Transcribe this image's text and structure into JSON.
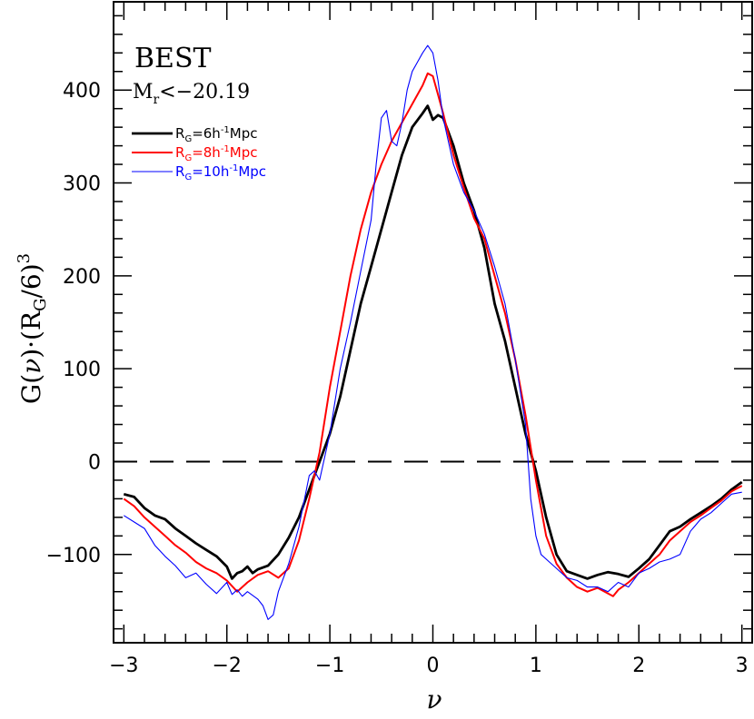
{
  "chart_data": {
    "type": "line",
    "xlabel_main": "ν",
    "ylabel": {
      "p1": "G(",
      "p2": "ν",
      "p3": ")·(R",
      "p4": "G",
      "p5": "/6)",
      "p6": "3"
    },
    "annotations": {
      "sample": "BEST",
      "cut_main": "M",
      "cut_sub": "r",
      "cut_rest": "<−20.19"
    },
    "xlim": [
      -3.1,
      3.1
    ],
    "ylim": [
      -195,
      495
    ],
    "x_ticks": [
      -3,
      -2,
      -1,
      0,
      1,
      2,
      3
    ],
    "x_tick_labels": [
      "−3",
      "−2",
      "−1",
      "0",
      "1",
      "2",
      "3"
    ],
    "y_ticks": [
      -100,
      0,
      100,
      200,
      300,
      400
    ],
    "y_tick_labels": [
      "−100",
      "0",
      "100",
      "200",
      "300",
      "400"
    ],
    "reference_line": {
      "y": 0,
      "style": "dashed"
    },
    "series": [
      {
        "name": "RG=6h-1Mpc",
        "label": {
          "main": "R",
          "sub": "G",
          "rest": "=6h",
          "sup": "-1",
          "tail": "Mpc"
        },
        "color": "#000000",
        "points": [
          [
            -3.0,
            -35
          ],
          [
            -2.9,
            -38
          ],
          [
            -2.8,
            -50
          ],
          [
            -2.7,
            -58
          ],
          [
            -2.6,
            -62
          ],
          [
            -2.5,
            -72
          ],
          [
            -2.4,
            -80
          ],
          [
            -2.3,
            -88
          ],
          [
            -2.2,
            -95
          ],
          [
            -2.1,
            -102
          ],
          [
            -2.0,
            -113
          ],
          [
            -1.95,
            -126
          ],
          [
            -1.9,
            -120
          ],
          [
            -1.85,
            -118
          ],
          [
            -1.8,
            -113
          ],
          [
            -1.75,
            -120
          ],
          [
            -1.7,
            -116
          ],
          [
            -1.6,
            -112
          ],
          [
            -1.5,
            -100
          ],
          [
            -1.4,
            -82
          ],
          [
            -1.3,
            -60
          ],
          [
            -1.2,
            -30
          ],
          [
            -1.1,
            0
          ],
          [
            -1.0,
            30
          ],
          [
            -0.9,
            70
          ],
          [
            -0.8,
            120
          ],
          [
            -0.7,
            170
          ],
          [
            -0.6,
            210
          ],
          [
            -0.5,
            250
          ],
          [
            -0.4,
            290
          ],
          [
            -0.3,
            330
          ],
          [
            -0.2,
            360
          ],
          [
            -0.1,
            375
          ],
          [
            -0.05,
            383
          ],
          [
            0.0,
            368
          ],
          [
            0.05,
            373
          ],
          [
            0.1,
            370
          ],
          [
            0.2,
            340
          ],
          [
            0.3,
            300
          ],
          [
            0.4,
            270
          ],
          [
            0.5,
            230
          ],
          [
            0.6,
            170
          ],
          [
            0.7,
            130
          ],
          [
            0.8,
            80
          ],
          [
            0.9,
            30
          ],
          [
            1.0,
            -10
          ],
          [
            1.1,
            -60
          ],
          [
            1.2,
            -100
          ],
          [
            1.3,
            -118
          ],
          [
            1.4,
            -122
          ],
          [
            1.5,
            -126
          ],
          [
            1.6,
            -122
          ],
          [
            1.7,
            -119
          ],
          [
            1.8,
            -121
          ],
          [
            1.9,
            -124
          ],
          [
            2.0,
            -115
          ],
          [
            2.1,
            -105
          ],
          [
            2.2,
            -90
          ],
          [
            2.3,
            -75
          ],
          [
            2.4,
            -70
          ],
          [
            2.5,
            -62
          ],
          [
            2.6,
            -55
          ],
          [
            2.7,
            -48
          ],
          [
            2.8,
            -40
          ],
          [
            2.9,
            -30
          ],
          [
            3.0,
            -22
          ]
        ]
      },
      {
        "name": "RG=8h-1Mpc",
        "label": {
          "main": "R",
          "sub": "G",
          "rest": "=8h",
          "sup": "-1",
          "tail": "Mpc"
        },
        "color": "#ff0000",
        "points": [
          [
            -3.0,
            -40
          ],
          [
            -2.9,
            -48
          ],
          [
            -2.8,
            -60
          ],
          [
            -2.7,
            -70
          ],
          [
            -2.6,
            -80
          ],
          [
            -2.5,
            -90
          ],
          [
            -2.4,
            -98
          ],
          [
            -2.3,
            -108
          ],
          [
            -2.2,
            -115
          ],
          [
            -2.1,
            -120
          ],
          [
            -2.0,
            -128
          ],
          [
            -1.9,
            -140
          ],
          [
            -1.8,
            -130
          ],
          [
            -1.7,
            -122
          ],
          [
            -1.6,
            -118
          ],
          [
            -1.5,
            -125
          ],
          [
            -1.4,
            -115
          ],
          [
            -1.3,
            -85
          ],
          [
            -1.2,
            -40
          ],
          [
            -1.1,
            10
          ],
          [
            -1.0,
            80
          ],
          [
            -0.9,
            140
          ],
          [
            -0.8,
            200
          ],
          [
            -0.7,
            250
          ],
          [
            -0.6,
            290
          ],
          [
            -0.5,
            320
          ],
          [
            -0.4,
            345
          ],
          [
            -0.3,
            365
          ],
          [
            -0.2,
            385
          ],
          [
            -0.1,
            405
          ],
          [
            -0.05,
            418
          ],
          [
            0.0,
            415
          ],
          [
            0.05,
            395
          ],
          [
            0.1,
            375
          ],
          [
            0.2,
            330
          ],
          [
            0.3,
            295
          ],
          [
            0.4,
            262
          ],
          [
            0.5,
            240
          ],
          [
            0.6,
            200
          ],
          [
            0.7,
            160
          ],
          [
            0.8,
            110
          ],
          [
            0.9,
            50
          ],
          [
            1.0,
            -20
          ],
          [
            1.1,
            -80
          ],
          [
            1.2,
            -110
          ],
          [
            1.3,
            -125
          ],
          [
            1.4,
            -135
          ],
          [
            1.5,
            -140
          ],
          [
            1.6,
            -136
          ],
          [
            1.7,
            -142
          ],
          [
            1.75,
            -145
          ],
          [
            1.8,
            -138
          ],
          [
            1.9,
            -130
          ],
          [
            2.0,
            -120
          ],
          [
            2.1,
            -110
          ],
          [
            2.2,
            -100
          ],
          [
            2.3,
            -85
          ],
          [
            2.4,
            -75
          ],
          [
            2.5,
            -65
          ],
          [
            2.6,
            -58
          ],
          [
            2.7,
            -50
          ],
          [
            2.8,
            -42
          ],
          [
            2.9,
            -32
          ],
          [
            3.0,
            -26
          ]
        ]
      },
      {
        "name": "RG=10h-1Mpc",
        "label": {
          "main": "R",
          "sub": "G",
          "rest": "=10h",
          "sup": "-1",
          "tail": "Mpc"
        },
        "color": "#0000ff",
        "points": [
          [
            -3.0,
            -58
          ],
          [
            -2.9,
            -65
          ],
          [
            -2.8,
            -72
          ],
          [
            -2.7,
            -90
          ],
          [
            -2.6,
            -102
          ],
          [
            -2.5,
            -112
          ],
          [
            -2.4,
            -125
          ],
          [
            -2.3,
            -120
          ],
          [
            -2.2,
            -132
          ],
          [
            -2.1,
            -142
          ],
          [
            -2.0,
            -130
          ],
          [
            -1.95,
            -143
          ],
          [
            -1.9,
            -138
          ],
          [
            -1.85,
            -145
          ],
          [
            -1.8,
            -140
          ],
          [
            -1.7,
            -148
          ],
          [
            -1.65,
            -155
          ],
          [
            -1.6,
            -170
          ],
          [
            -1.55,
            -165
          ],
          [
            -1.5,
            -140
          ],
          [
            -1.4,
            -110
          ],
          [
            -1.3,
            -70
          ],
          [
            -1.2,
            -15
          ],
          [
            -1.15,
            -10
          ],
          [
            -1.1,
            -20
          ],
          [
            -1.0,
            30
          ],
          [
            -0.9,
            100
          ],
          [
            -0.8,
            150
          ],
          [
            -0.7,
            205
          ],
          [
            -0.6,
            260
          ],
          [
            -0.55,
            320
          ],
          [
            -0.5,
            370
          ],
          [
            -0.45,
            378
          ],
          [
            -0.4,
            345
          ],
          [
            -0.35,
            340
          ],
          [
            -0.3,
            365
          ],
          [
            -0.25,
            400
          ],
          [
            -0.2,
            420
          ],
          [
            -0.15,
            430
          ],
          [
            -0.1,
            440
          ],
          [
            -0.05,
            448
          ],
          [
            0.0,
            440
          ],
          [
            0.05,
            410
          ],
          [
            0.1,
            370
          ],
          [
            0.2,
            320
          ],
          [
            0.3,
            290
          ],
          [
            0.4,
            270
          ],
          [
            0.5,
            245
          ],
          [
            0.6,
            210
          ],
          [
            0.7,
            170
          ],
          [
            0.8,
            110
          ],
          [
            0.9,
            40
          ],
          [
            0.95,
            -40
          ],
          [
            1.0,
            -80
          ],
          [
            1.05,
            -100
          ],
          [
            1.1,
            -105
          ],
          [
            1.2,
            -115
          ],
          [
            1.3,
            -125
          ],
          [
            1.4,
            -128
          ],
          [
            1.5,
            -135
          ],
          [
            1.6,
            -135
          ],
          [
            1.7,
            -140
          ],
          [
            1.8,
            -130
          ],
          [
            1.9,
            -135
          ],
          [
            2.0,
            -120
          ],
          [
            2.1,
            -115
          ],
          [
            2.2,
            -108
          ],
          [
            2.3,
            -105
          ],
          [
            2.4,
            -100
          ],
          [
            2.5,
            -75
          ],
          [
            2.6,
            -62
          ],
          [
            2.7,
            -55
          ],
          [
            2.8,
            -45
          ],
          [
            2.9,
            -35
          ],
          [
            3.0,
            -33
          ]
        ]
      }
    ]
  }
}
